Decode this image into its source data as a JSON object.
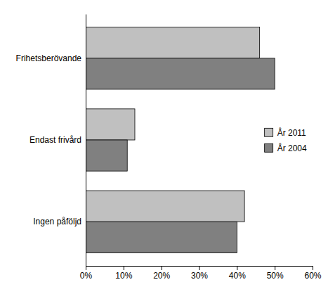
{
  "chart_data": {
    "type": "bar",
    "orientation": "horizontal",
    "categories": [
      "Ingen påföljd",
      "Endast frivård",
      "Frihetsberövande"
    ],
    "series": [
      {
        "name": "År 2011",
        "color": "#c0c0c0",
        "values": [
          0.42,
          0.13,
          0.46
        ]
      },
      {
        "name": "År 2004",
        "color": "#808080",
        "values": [
          0.4,
          0.11,
          0.5
        ]
      }
    ],
    "xlim": [
      0,
      0.6
    ],
    "xticks": [
      {
        "value": 0,
        "label": "0%"
      },
      {
        "value": 0.1,
        "label": "10%"
      },
      {
        "value": 0.2,
        "label": "20%"
      },
      {
        "value": 0.3,
        "label": "30%"
      },
      {
        "value": 0.4,
        "label": "40%"
      },
      {
        "value": 0.5,
        "label": "50%"
      },
      {
        "value": 0.6,
        "label": "60%"
      }
    ],
    "grid": false,
    "legend": "right"
  }
}
